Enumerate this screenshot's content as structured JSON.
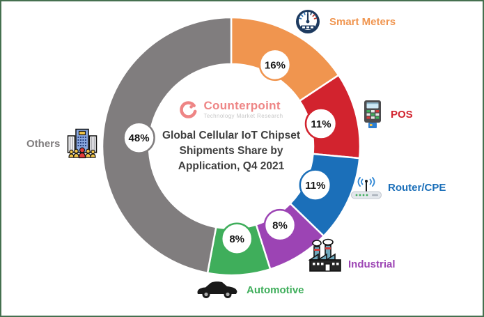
{
  "frame": {
    "border_color": "#45704f",
    "background": "#ffffff"
  },
  "branding": {
    "logo_name": "Counterpoint",
    "logo_tagline": "Technology Market Research",
    "logo_color": "#ee8585",
    "tagline_color": "#c7c7c7"
  },
  "chart_data": {
    "type": "pie",
    "variant": "donut",
    "title": "Global Cellular IoT Chipset Shipments Share by Application, Q4 2021",
    "title_lines": [
      "Global Cellular IoT Chipset",
      "Shipments Share by",
      "Application, Q4 2021"
    ],
    "title_color": "#3f3f3f",
    "unit": "%",
    "start_angle_deg": 0,
    "direction": "clockwise",
    "legend_position": "around",
    "segments": [
      {
        "label": "Smart Meters",
        "value": 16,
        "display": "16%",
        "color": "#f0954f",
        "icon": "gauge-icon"
      },
      {
        "label": "POS",
        "value": 11,
        "display": "11%",
        "color": "#d2232e",
        "icon": "pos-terminal-icon"
      },
      {
        "label": "Router/CPE",
        "value": 11,
        "display": "11%",
        "color": "#1b6fb9",
        "icon": "router-icon"
      },
      {
        "label": "Industrial",
        "value": 8,
        "display": "8%",
        "color": "#9c44b4",
        "icon": "factory-icon"
      },
      {
        "label": "Automotive",
        "value": 8,
        "display": "8%",
        "color": "#3fae5b",
        "icon": "car-icon"
      },
      {
        "label": "Others",
        "value": 48,
        "display": "48%",
        "color": "#807d7e",
        "icon": "building-icon"
      }
    ]
  }
}
